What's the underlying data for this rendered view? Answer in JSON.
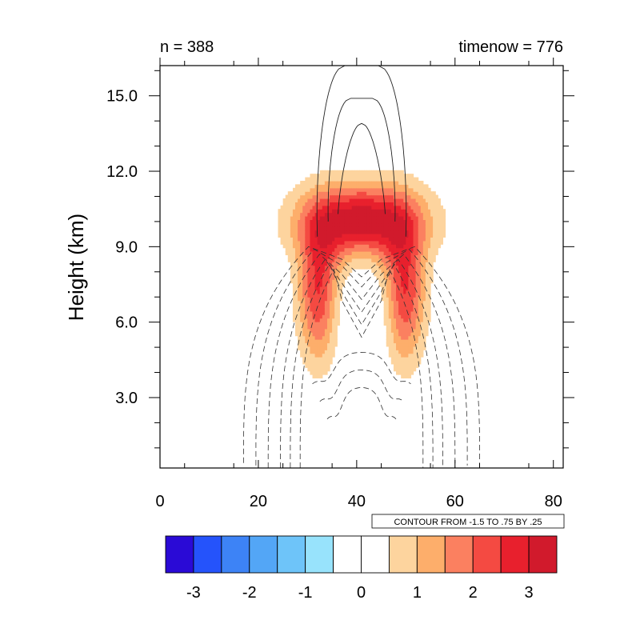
{
  "chart_data": {
    "type": "heatmap",
    "title_left": "n = 388",
    "title_right": "timenow = 776",
    "ylabel": "Height (km)",
    "xlabel": "",
    "xlim": [
      0,
      82
    ],
    "ylim": [
      0.2,
      16.2
    ],
    "xticks": [
      0,
      20,
      40,
      60,
      80
    ],
    "xtick_labels": [
      "0",
      "20",
      "40",
      "60",
      "80"
    ],
    "yticks": [
      3,
      6,
      9,
      12,
      15
    ],
    "ytick_labels": [
      "3.0",
      "6.0",
      "9.0",
      "12.0",
      "15.0"
    ],
    "contour_info": "CONTOUR FROM -1.5 TO .75 BY .25",
    "filled_field": {
      "center_x": 41,
      "peak_height_km": 10.2,
      "max_value": 3.5,
      "levels": [
        {
          "value": 0.5,
          "color": "#fdd49e"
        },
        {
          "value": 1.0,
          "color": "#fdae6b"
        },
        {
          "value": 1.5,
          "color": "#fb8060"
        },
        {
          "value": 2.0,
          "color": "#f44a42"
        },
        {
          "value": 2.5,
          "color": "#e8202d"
        },
        {
          "value": 3.0,
          "color": "#d11a2c"
        }
      ]
    },
    "line_contours": {
      "positive": [
        0.25,
        0.5,
        0.75
      ],
      "negative": [
        -0.25,
        -0.5,
        -0.75,
        -1.0,
        -1.25,
        -1.5
      ]
    },
    "colorbar": {
      "colors": [
        "#2a0ad6",
        "#2553fb",
        "#3d83f6",
        "#53a6f6",
        "#6ec4f9",
        "#98e3fc",
        "#ffffff",
        "#ffffff",
        "#fdd49e",
        "#fdae6b",
        "#fb8060",
        "#f44a42",
        "#e8202d",
        "#d11a2c"
      ],
      "tick_labels": [
        "-3",
        "-2",
        "-1",
        "0",
        "1",
        "2",
        "3"
      ]
    }
  }
}
